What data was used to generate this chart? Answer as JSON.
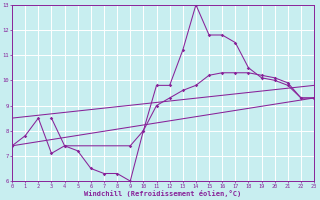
{
  "xlabel": "Windchill (Refroidissement éolien,°C)",
  "bg_color": "#c8eef0",
  "line_color": "#882299",
  "grid_color": "#ffffff",
  "xlim": [
    0,
    23
  ],
  "ylim": [
    6,
    13
  ],
  "yticks": [
    6,
    7,
    8,
    9,
    10,
    11,
    12,
    13
  ],
  "xticks": [
    0,
    1,
    2,
    3,
    4,
    5,
    6,
    7,
    8,
    9,
    10,
    11,
    12,
    13,
    14,
    15,
    16,
    17,
    18,
    19,
    20,
    21,
    22,
    23
  ],
  "s1x": [
    0,
    1,
    2,
    3,
    4,
    5,
    6,
    7,
    8,
    9,
    10,
    11,
    12,
    13,
    14,
    15,
    16,
    17,
    18,
    19,
    20,
    21,
    22,
    23
  ],
  "s1y": [
    7.4,
    7.8,
    8.5,
    7.1,
    7.4,
    7.2,
    6.5,
    6.3,
    6.3,
    6.0,
    8.0,
    9.8,
    9.8,
    11.2,
    13.0,
    11.8,
    11.8,
    11.5,
    10.5,
    10.1,
    10.0,
    9.8,
    9.3,
    9.3
  ],
  "s2x": [
    3,
    4,
    9,
    10,
    11,
    12,
    13,
    14,
    15,
    16,
    17,
    18,
    19,
    20,
    21,
    22,
    23
  ],
  "s2y": [
    8.5,
    7.4,
    7.4,
    8.0,
    9.0,
    9.3,
    9.6,
    9.8,
    10.2,
    10.3,
    10.3,
    10.3,
    10.2,
    10.1,
    9.9,
    9.3,
    9.3
  ],
  "diag1x": [
    0,
    23
  ],
  "diag1y": [
    7.4,
    9.3
  ],
  "diag2x": [
    0,
    23
  ],
  "diag2y": [
    8.5,
    9.8
  ]
}
